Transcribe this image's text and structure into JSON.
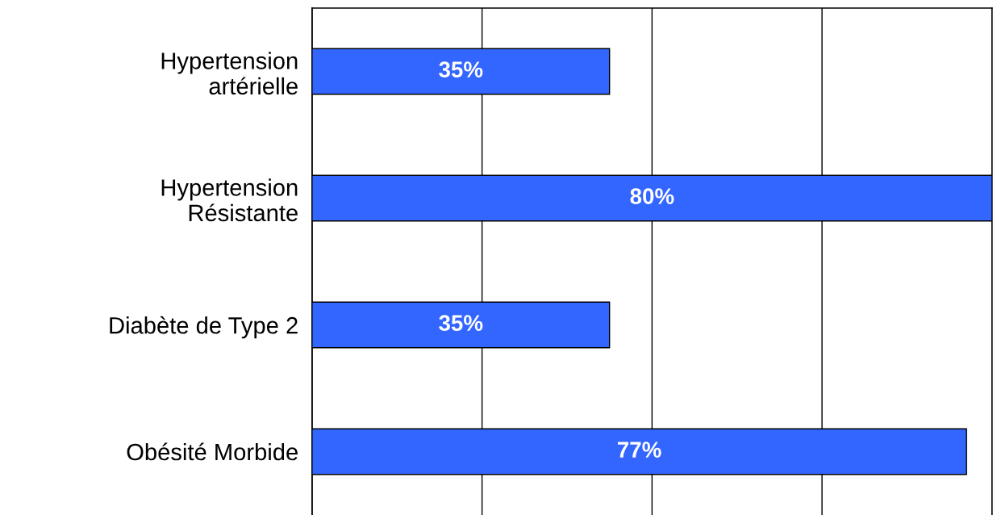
{
  "chart_data": {
    "type": "bar",
    "orientation": "horizontal",
    "categories": [
      "Hypertension\nartérielle",
      "Hypertension\nRésistante",
      "Diabète de Type 2",
      "Obésité Morbide"
    ],
    "values": [
      35,
      80,
      35,
      77
    ],
    "value_labels": [
      "35%",
      "80%",
      "35%",
      "77%"
    ],
    "color": "#3366ff",
    "xlim": [
      0,
      80
    ],
    "xticks": [
      {
        "value": 0,
        "label": null
      },
      {
        "value": 20,
        "label": null
      },
      {
        "value": 40,
        "label": null
      },
      {
        "value": 60,
        "label": null
      },
      {
        "value": 80,
        "label": null
      }
    ],
    "grid": "x",
    "tick_labels": "y"
  }
}
